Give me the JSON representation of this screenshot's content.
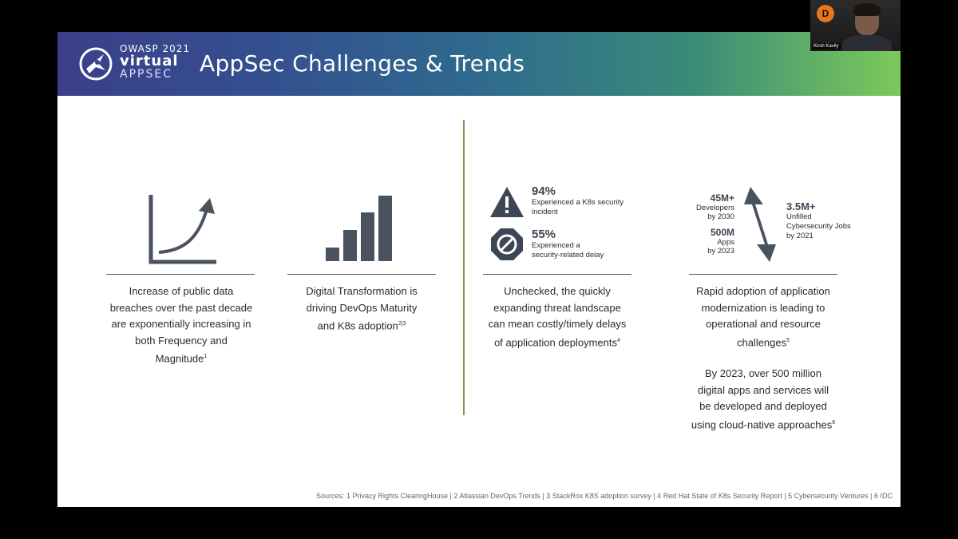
{
  "header": {
    "logo": {
      "line1": "OWASP 2021",
      "line2": "virtual",
      "line3": "APPSEC"
    },
    "title": "AppSec Challenges & Trends",
    "gradient_colors": [
      "#3a3f8a",
      "#2f6a8e",
      "#7cc95a"
    ]
  },
  "columns": [
    {
      "icon": "exponential-growth-chart-icon",
      "caption_lines": [
        "Increase of public data",
        "breaches over the past decade",
        "are exponentially increasing in",
        "both Frequency and",
        "Magnitude"
      ],
      "caption_sup": "1"
    },
    {
      "icon": "bar-chart-icon",
      "caption_lines": [
        "Digital Transformation  is",
        "driving DevOps Maturity",
        "and K8s adoption"
      ],
      "caption_sup": "2|3"
    },
    {
      "stats": [
        {
          "icon": "warning-triangle-icon",
          "value": "94%",
          "text_lines": [
            "Experienced a K8s security",
            "incident"
          ]
        },
        {
          "icon": "prohibited-octagon-icon",
          "value": "55%",
          "text_lines": [
            "Experienced a",
            "security-related delay"
          ]
        }
      ],
      "caption_lines": [
        "Unchecked, the quickly",
        "expanding threat landscape",
        "can mean costly/timely delays",
        "of application deployments"
      ],
      "caption_sup": "4"
    },
    {
      "left_stats": [
        {
          "value": "45M+",
          "text_lines": [
            "Developers",
            "by 2030"
          ]
        },
        {
          "value": "500M",
          "text_lines": [
            "Apps",
            "by 2023"
          ]
        }
      ],
      "right_stat": {
        "value": "3.5M+",
        "text_lines": [
          "Unfilled",
          "Cybersecurity Jobs",
          "by 2021"
        ]
      },
      "icon": "up-down-arrow-icon",
      "caption_lines": [
        "Rapid adoption of application",
        "modernization is leading to",
        "operational and resource",
        "challenges"
      ],
      "caption_sup": "5",
      "caption2_lines": [
        "By 2023, over 500 million",
        "digital apps and services will",
        "be developed and deployed",
        "using cloud-native approaches"
      ],
      "caption2_sup": "6"
    }
  ],
  "sources": "Sources: 1 Privacy Rights ClearingHouse | 2 Atlassian DevOps Trends | 3 StackRox K8S adoption survey | 4 Red Hat State of K8s Security Report | 5 Cybersecurity Ventures | 6 IDC",
  "webcam": {
    "badge": "D",
    "name": "Kirsh Kavity"
  },
  "colors": {
    "icon": "#4a5260",
    "divider": "#7a9a4e",
    "text": "#2b2b2b"
  }
}
